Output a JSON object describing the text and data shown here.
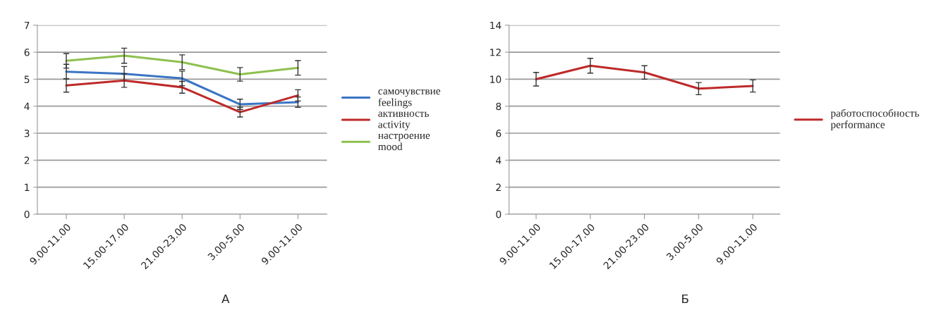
{
  "chart_data": [
    {
      "type": "line",
      "categories": [
        "9.00-11.00",
        "15.00-17.00",
        "21.00-23.00",
        "3.00-5.00",
        "9.00-11.00"
      ],
      "ylim": [
        0,
        7
      ],
      "yticks": [
        0,
        1,
        2,
        3,
        4,
        5,
        6,
        7
      ],
      "grid": "y",
      "legend": "right",
      "marker": "none",
      "annotations": [
        "А"
      ],
      "series": [
        {
          "name": "самочувствие\nfeelings",
          "color": "#3a75c4",
          "values": [
            5.28,
            5.2,
            5.03,
            4.07,
            4.15
          ],
          "errors": [
            0.27,
            0.27,
            0.27,
            0.19,
            0.19
          ]
        },
        {
          "name": "активность\nactivity",
          "color": "#be2a2a",
          "values": [
            4.77,
            4.95,
            4.7,
            3.78,
            4.4
          ],
          "errors": [
            0.25,
            0.25,
            0.22,
            0.18,
            0.21
          ]
        },
        {
          "name": "настроение\nmood",
          "color": "#8dc04e",
          "values": [
            5.68,
            5.87,
            5.63,
            5.18,
            5.42
          ],
          "errors": [
            0.27,
            0.28,
            0.27,
            0.25,
            0.27
          ]
        }
      ]
    },
    {
      "type": "line",
      "categories": [
        "9.00-11.00",
        "15.00-17.00",
        "21.00-23.00",
        "3.00-5.00",
        "9.00-11.00"
      ],
      "ylim": [
        0,
        14
      ],
      "yticks": [
        0,
        2,
        4,
        6,
        8,
        10,
        12,
        14
      ],
      "grid": "y",
      "legend": "right",
      "marker": "none",
      "annotations": [
        "Б"
      ],
      "series": [
        {
          "name": "работоспособность\nperformance",
          "color": "#be2a2a",
          "values": [
            10.0,
            11.0,
            10.5,
            9.3,
            9.5
          ],
          "errors": [
            0.5,
            0.55,
            0.5,
            0.45,
            0.45
          ]
        }
      ]
    }
  ]
}
